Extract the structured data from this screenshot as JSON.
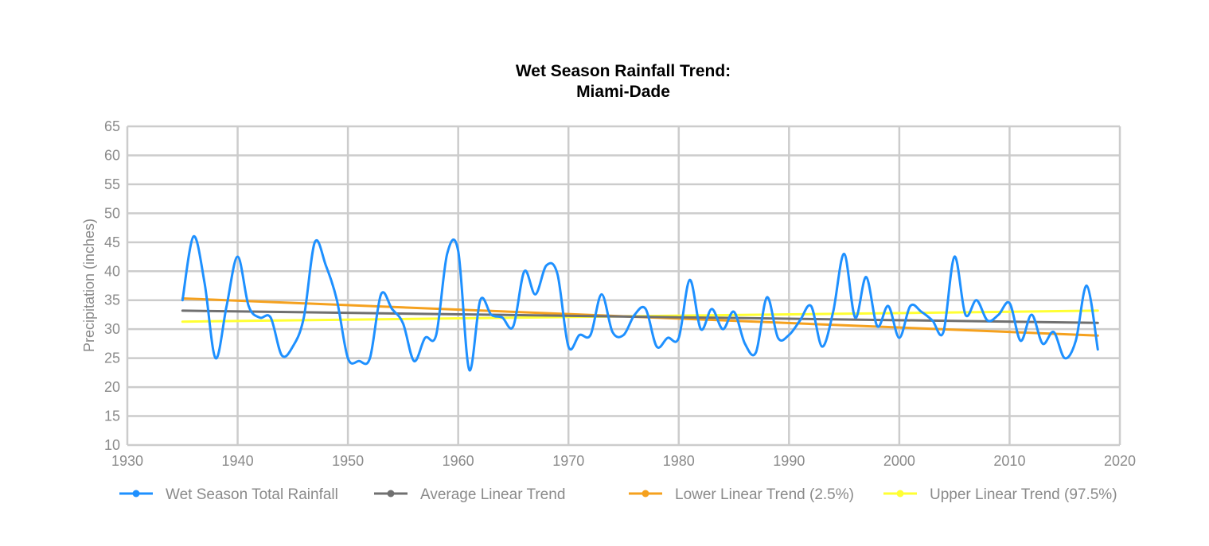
{
  "chart_data": {
    "type": "line",
    "title": [
      "Wet Season Rainfall Trend:",
      "Miami-Dade"
    ],
    "xlabel": "",
    "ylabel": "Precipitation (inches)",
    "xlim": [
      1930,
      2020
    ],
    "ylim": [
      10,
      65
    ],
    "x_ticks": [
      1930,
      1940,
      1950,
      1960,
      1970,
      1980,
      1990,
      2000,
      2010,
      2020
    ],
    "y_ticks": [
      10,
      15,
      20,
      25,
      30,
      35,
      40,
      45,
      50,
      55,
      60,
      65
    ],
    "grid": true,
    "legend_position": "bottom",
    "series": [
      {
        "name": "Wet Season Total Rainfall",
        "color": "#1e90ff",
        "smooth": true,
        "x": [
          1935,
          1936,
          1937,
          1938,
          1939,
          1940,
          1941,
          1942,
          1943,
          1944,
          1945,
          1946,
          1947,
          1948,
          1949,
          1950,
          1951,
          1952,
          1953,
          1954,
          1955,
          1956,
          1957,
          1958,
          1959,
          1960,
          1961,
          1962,
          1963,
          1964,
          1965,
          1966,
          1967,
          1968,
          1969,
          1970,
          1971,
          1972,
          1973,
          1974,
          1975,
          1976,
          1977,
          1978,
          1979,
          1980,
          1981,
          1982,
          1983,
          1984,
          1985,
          1986,
          1987,
          1988,
          1989,
          1990,
          1991,
          1992,
          1993,
          1994,
          1995,
          1996,
          1997,
          1998,
          1999,
          2000,
          2001,
          2002,
          2003,
          2004,
          2005,
          2006,
          2007,
          2008,
          2009,
          2010,
          2011,
          2012,
          2013,
          2014,
          2015,
          2016,
          2017,
          2018
        ],
        "values": [
          35,
          46,
          38,
          25,
          34,
          42.5,
          34,
          32,
          32,
          25.5,
          27,
          32,
          45,
          41,
          35,
          25,
          24.5,
          25,
          36,
          33.5,
          31,
          24.5,
          28.5,
          29,
          43,
          43.5,
          23,
          35,
          32.5,
          32,
          30.5,
          40,
          36,
          41,
          39.5,
          27,
          29,
          29,
          36,
          29.5,
          29,
          32.5,
          33.5,
          27,
          28.5,
          28.5,
          38.5,
          30,
          33.5,
          30,
          33,
          27.5,
          26,
          35.5,
          28.5,
          29,
          31.5,
          34,
          27,
          33,
          43,
          32,
          39,
          30.5,
          34,
          28.5,
          34,
          33,
          31.5,
          29.5,
          42.5,
          32.5,
          35,
          31.5,
          32.5,
          34.5,
          28,
          32.5,
          27.5,
          29.5,
          25,
          28,
          37.5,
          26.5
        ]
      },
      {
        "name": "Average Linear Trend",
        "color": "#707070",
        "smooth": false,
        "x": [
          1935,
          2018
        ],
        "values": [
          33.2,
          31.1
        ]
      },
      {
        "name": "Lower Linear Trend (2.5%)",
        "color": "#f5a11e",
        "smooth": false,
        "x": [
          1935,
          2018
        ],
        "values": [
          35.3,
          28.9
        ]
      },
      {
        "name": "Upper Linear Trend (97.5%)",
        "color": "#ffff33",
        "smooth": false,
        "x": [
          1935,
          2018
        ],
        "values": [
          31.3,
          33.2
        ]
      }
    ]
  }
}
